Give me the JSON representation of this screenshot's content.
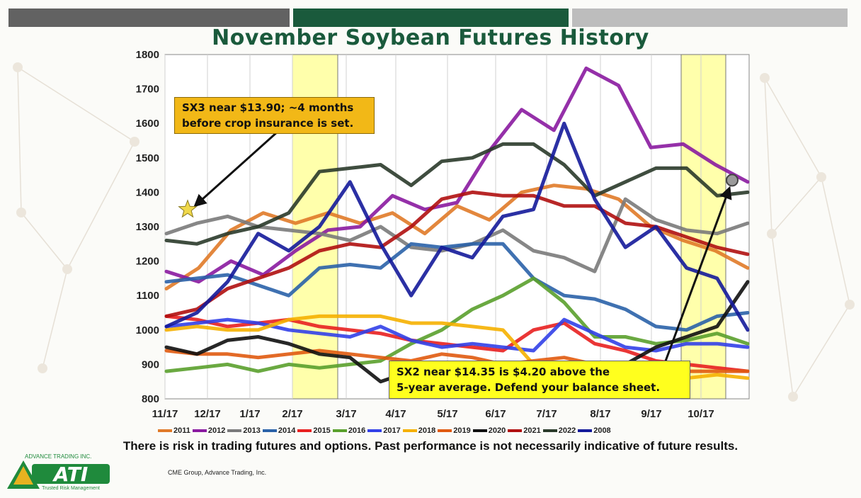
{
  "header": {
    "title": "November Soybean Futures History"
  },
  "chart_data": {
    "type": "line",
    "title": "November Soybean Futures History",
    "ylim": [
      800,
      1800
    ],
    "yticks": [
      "1800",
      "1700",
      "1600",
      "1500",
      "1400",
      "1300",
      "1200",
      "1100",
      "1000",
      "900",
      "800"
    ],
    "xticks": [
      "11/17",
      "12/17",
      "1/17",
      "2/17",
      "3/17",
      "4/17",
      "5/17",
      "6/17",
      "7/17",
      "8/17",
      "9/17",
      "10/17"
    ],
    "grid": "vertical",
    "highlight_bands": [
      {
        "from": "1/28",
        "to": "2/28"
      },
      {
        "from": "9/25",
        "to": "10/25"
      }
    ],
    "series": [
      {
        "name": "2011",
        "color": "#e07a28",
        "values": [
          1120,
          1180,
          1290,
          1340,
          1310,
          1340,
          1310,
          1340,
          1280,
          1360,
          1320,
          1400,
          1420,
          1410,
          1380,
          1300,
          1260,
          1230,
          1180
        ]
      },
      {
        "name": "2012",
        "color": "#8a1aa0",
        "values": [
          1170,
          1140,
          1200,
          1160,
          1230,
          1290,
          1300,
          1390,
          1350,
          1370,
          1520,
          1640,
          1580,
          1760,
          1710,
          1530,
          1540,
          1480,
          1430
        ]
      },
      {
        "name": "2013",
        "color": "#7a7a7a",
        "values": [
          1280,
          1310,
          1330,
          1300,
          1290,
          1280,
          1260,
          1300,
          1240,
          1230,
          1250,
          1290,
          1230,
          1210,
          1170,
          1380,
          1320,
          1290,
          1280,
          1310
        ]
      },
      {
        "name": "2014",
        "color": "#2a62a8",
        "values": [
          1140,
          1150,
          1160,
          1130,
          1100,
          1180,
          1190,
          1180,
          1250,
          1240,
          1250,
          1250,
          1150,
          1100,
          1090,
          1060,
          1010,
          1000,
          1040,
          1050
        ]
      },
      {
        "name": "2015",
        "color": "#e82020",
        "values": [
          1040,
          1030,
          1010,
          1020,
          1030,
          1010,
          1000,
          990,
          970,
          960,
          950,
          940,
          1000,
          1020,
          960,
          940,
          910,
          900,
          890,
          880
        ]
      },
      {
        "name": "2016",
        "color": "#5aa02c",
        "values": [
          880,
          890,
          900,
          880,
          900,
          890,
          900,
          910,
          960,
          1000,
          1060,
          1100,
          1150,
          1080,
          980,
          980,
          960,
          970,
          990,
          960
        ]
      },
      {
        "name": "2017",
        "color": "#3240e8",
        "values": [
          1010,
          1020,
          1030,
          1020,
          1000,
          990,
          980,
          1010,
          970,
          950,
          960,
          950,
          940,
          1030,
          990,
          950,
          940,
          960,
          960,
          950
        ]
      },
      {
        "name": "2018",
        "color": "#f5b000",
        "values": [
          1000,
          1010,
          1000,
          1000,
          1030,
          1040,
          1040,
          1040,
          1020,
          1020,
          1010,
          1000,
          900,
          880,
          870,
          880,
          860,
          860,
          870,
          860
        ]
      },
      {
        "name": "2019",
        "color": "#e05a10",
        "values": [
          940,
          930,
          930,
          920,
          930,
          940,
          930,
          920,
          910,
          930,
          920,
          900,
          910,
          920,
          900,
          900,
          890,
          880,
          880,
          880
        ]
      },
      {
        "name": "2020",
        "color": "#101010",
        "values": [
          950,
          930,
          970,
          980,
          960,
          930,
          920,
          850,
          880,
          870,
          880,
          880,
          870,
          880,
          870,
          900,
          950,
          980,
          1010,
          1140
        ]
      },
      {
        "name": "2021",
        "color": "#b01010",
        "values": [
          1040,
          1060,
          1120,
          1150,
          1180,
          1230,
          1250,
          1240,
          1300,
          1380,
          1400,
          1390,
          1390,
          1360,
          1360,
          1310,
          1300,
          1270,
          1240,
          1220
        ]
      },
      {
        "name": "2022",
        "color": "#2a3a2a",
        "values": [
          1260,
          1250,
          1280,
          1300,
          1340,
          1460,
          1470,
          1480,
          1420,
          1490,
          1500,
          1540,
          1540,
          1480,
          1390,
          1430,
          1470,
          1470,
          1390,
          1400
        ]
      },
      {
        "name": "2008",
        "color": "#141a9a",
        "values": [
          1010,
          1050,
          1140,
          1280,
          1230,
          1300,
          1430,
          1250,
          1100,
          1240,
          1210,
          1330,
          1350,
          1600,
          1380,
          1240,
          1300,
          1180,
          1150,
          1000
        ]
      }
    ],
    "markers": [
      {
        "type": "star",
        "series": "2013",
        "value": 1350
      },
      {
        "type": "circle",
        "series": "2012",
        "value": 1435
      }
    ]
  },
  "callouts": {
    "c1_line1": "SX3 near $13.90; ~4 months",
    "c1_line2": "before crop insurance is set.",
    "c2_line1": "SX2 near $14.35 is $4.20 above the",
    "c2_line2": "5-year average.  Defend your balance sheet."
  },
  "footer": {
    "disclaimer": "There is risk in trading futures and options.  Past performance is not necessarily indicative of future results.",
    "source": "CME Group, Advance Trading, Inc."
  },
  "logo": {
    "brand": "ATI",
    "top": "ADVANCE TRADING INC.",
    "tagline": "Trusted Risk Management",
    "colors": {
      "green": "#1f8a3c",
      "gold": "#e6b220"
    }
  }
}
